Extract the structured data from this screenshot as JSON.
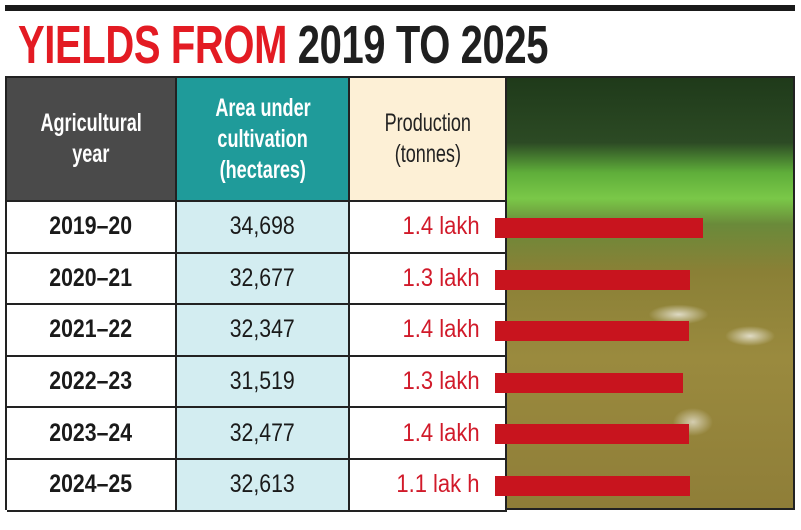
{
  "title": {
    "part1": "YIELDS FROM",
    "part2": "2019 TO 2025"
  },
  "colors": {
    "title_red": "#e31b23",
    "bar": "#c8141e",
    "header_year": "#4a4a4a",
    "header_area": "#1f9b9a",
    "header_production": "#fdf0d6",
    "area_cells": "#d3edf1"
  },
  "chart_data": {
    "type": "table",
    "headers": [
      "Agricultural year",
      "Area under cultivation (hectares)",
      "Production (tonnes)"
    ],
    "rows": [
      {
        "year": "2019–20",
        "area": "34,698",
        "production": "1.4 lakh"
      },
      {
        "year": "2020–21",
        "area": "32,677",
        "production": "1.3 lakh"
      },
      {
        "year": "2021–22",
        "area": "32,347",
        "production": "1.4 lakh"
      },
      {
        "year": "2022–23",
        "area": "31,519",
        "production": "1.3 lakh"
      },
      {
        "year": "2023–24",
        "area": "32,477",
        "production": "1.4 lakh"
      },
      {
        "year": "2024–25",
        "area": "32,613",
        "production": "1.1 lak h"
      }
    ]
  },
  "header": {
    "year_l1": "Agricultural",
    "year_l2": "year",
    "area_l1": "Area under",
    "area_l2": "cultivation",
    "area_l3": "(hectares)",
    "prod_l1": "Production",
    "prod_l2": "(tonnes)"
  },
  "photo": {
    "description_icon": "rice-field-photo"
  }
}
